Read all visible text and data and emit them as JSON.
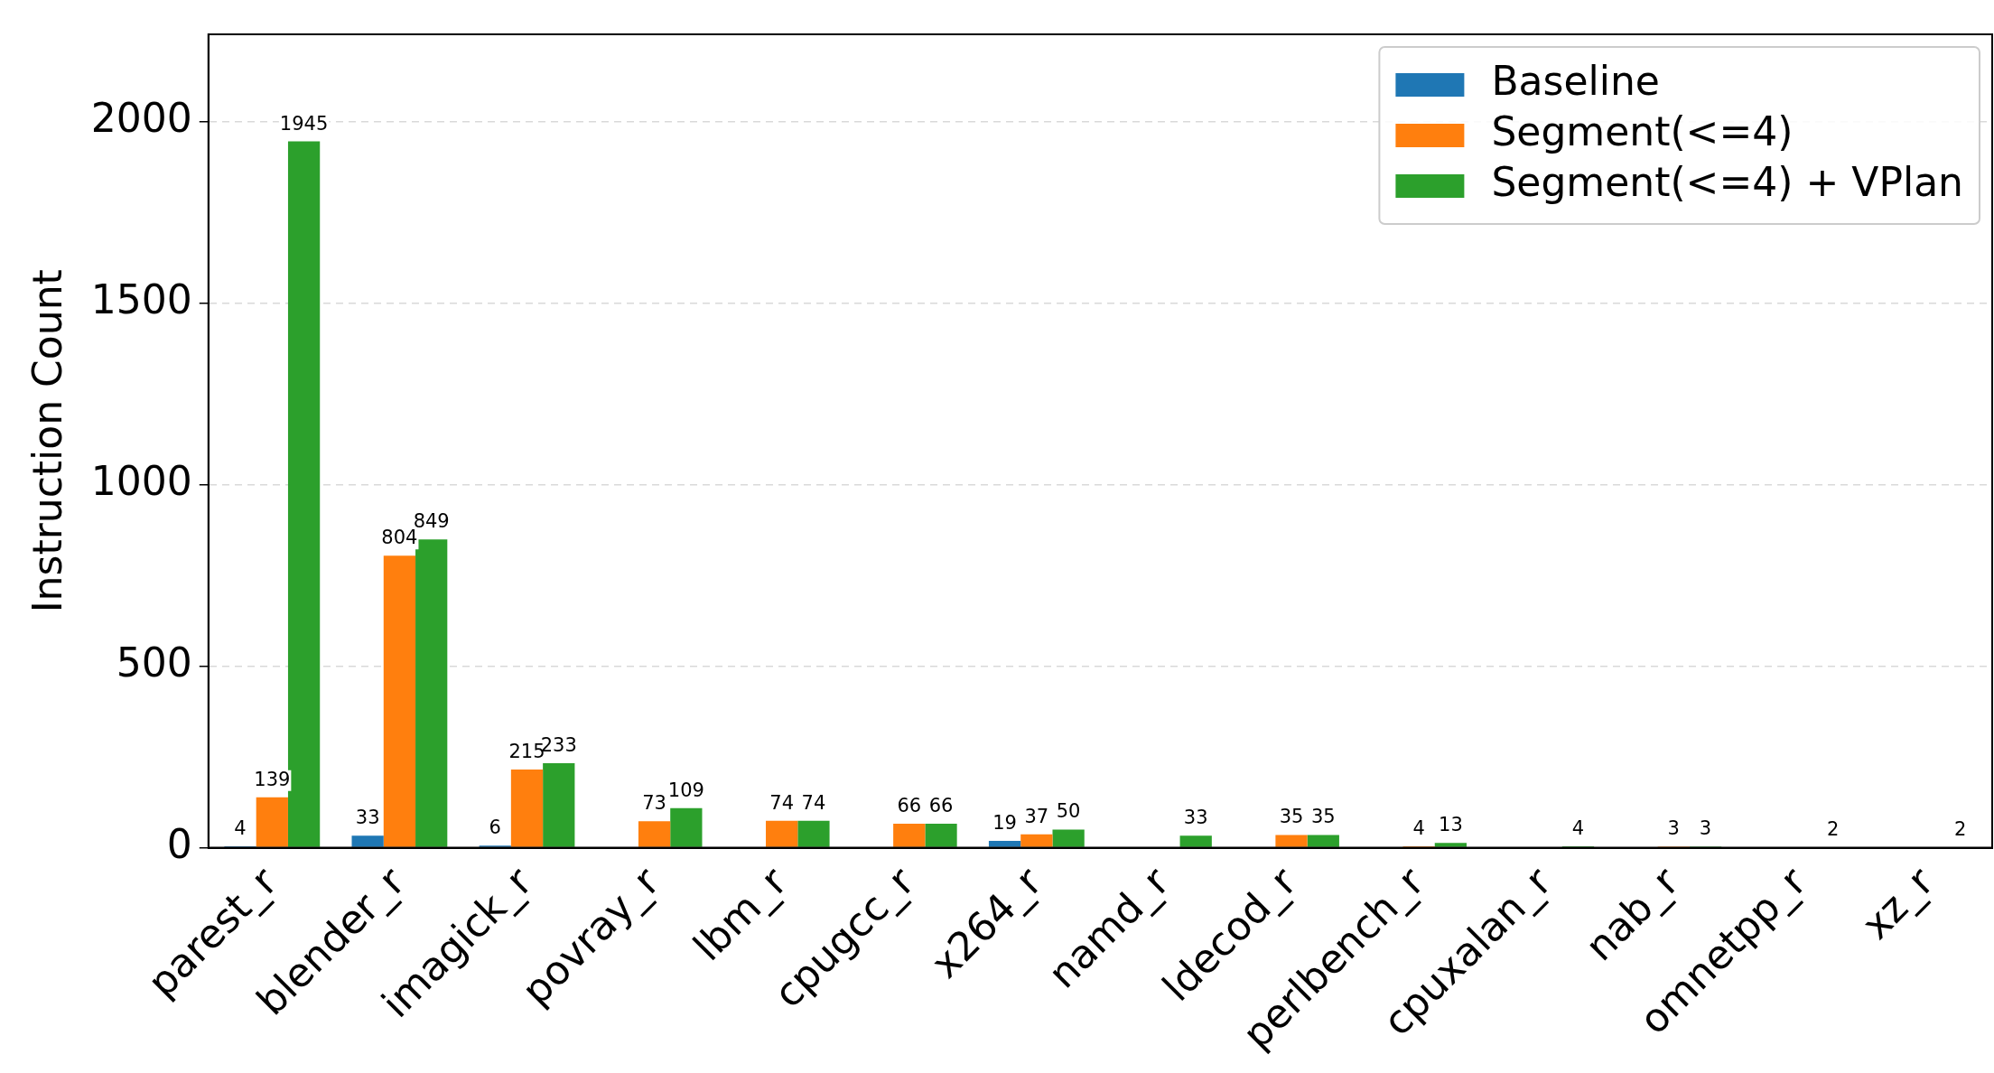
{
  "chart_data": {
    "type": "bar",
    "ylabel": "Instruction Count",
    "categories": [
      "parest_r",
      "blender_r",
      "imagick_r",
      "povray_r",
      "lbm_r",
      "cpugcc_r",
      "x264_r",
      "namd_r",
      "ldecod_r",
      "perlbench_r",
      "cpuxalan_r",
      "nab_r",
      "omnetpp_r",
      "xz_r"
    ],
    "series": [
      {
        "name": "Baseline",
        "color": "#1f77b4",
        "values": [
          4,
          33,
          6,
          0,
          0,
          0,
          19,
          0,
          0,
          0,
          0,
          0,
          0,
          0
        ],
        "value_labels": [
          "4",
          "33",
          "6",
          null,
          null,
          null,
          "19",
          null,
          null,
          null,
          null,
          null,
          null,
          null
        ]
      },
      {
        "name": "Segment(<=4)",
        "color": "#ff7f0e",
        "values": [
          139,
          804,
          215,
          73,
          74,
          66,
          37,
          0,
          35,
          4,
          0,
          3,
          0,
          0
        ],
        "value_labels": [
          "139",
          "804",
          "215",
          "73",
          "74",
          "66",
          "37",
          null,
          "35",
          "4",
          null,
          "3",
          null,
          null
        ]
      },
      {
        "name": "Segment(<=4) + VPlan",
        "color": "#2ca02c",
        "values": [
          1945,
          849,
          233,
          109,
          74,
          66,
          50,
          33,
          35,
          13,
          4,
          3,
          2,
          2
        ],
        "value_labels": [
          "1945",
          "849",
          "233",
          "109",
          "74",
          "66",
          "50",
          "33",
          "35",
          "13",
          "4",
          "3",
          "2",
          "2"
        ]
      }
    ],
    "ylim": [
      0,
      2240
    ],
    "yticks": [
      0,
      500,
      1000,
      1500,
      2000
    ],
    "grid": "y",
    "legend": "top right"
  }
}
